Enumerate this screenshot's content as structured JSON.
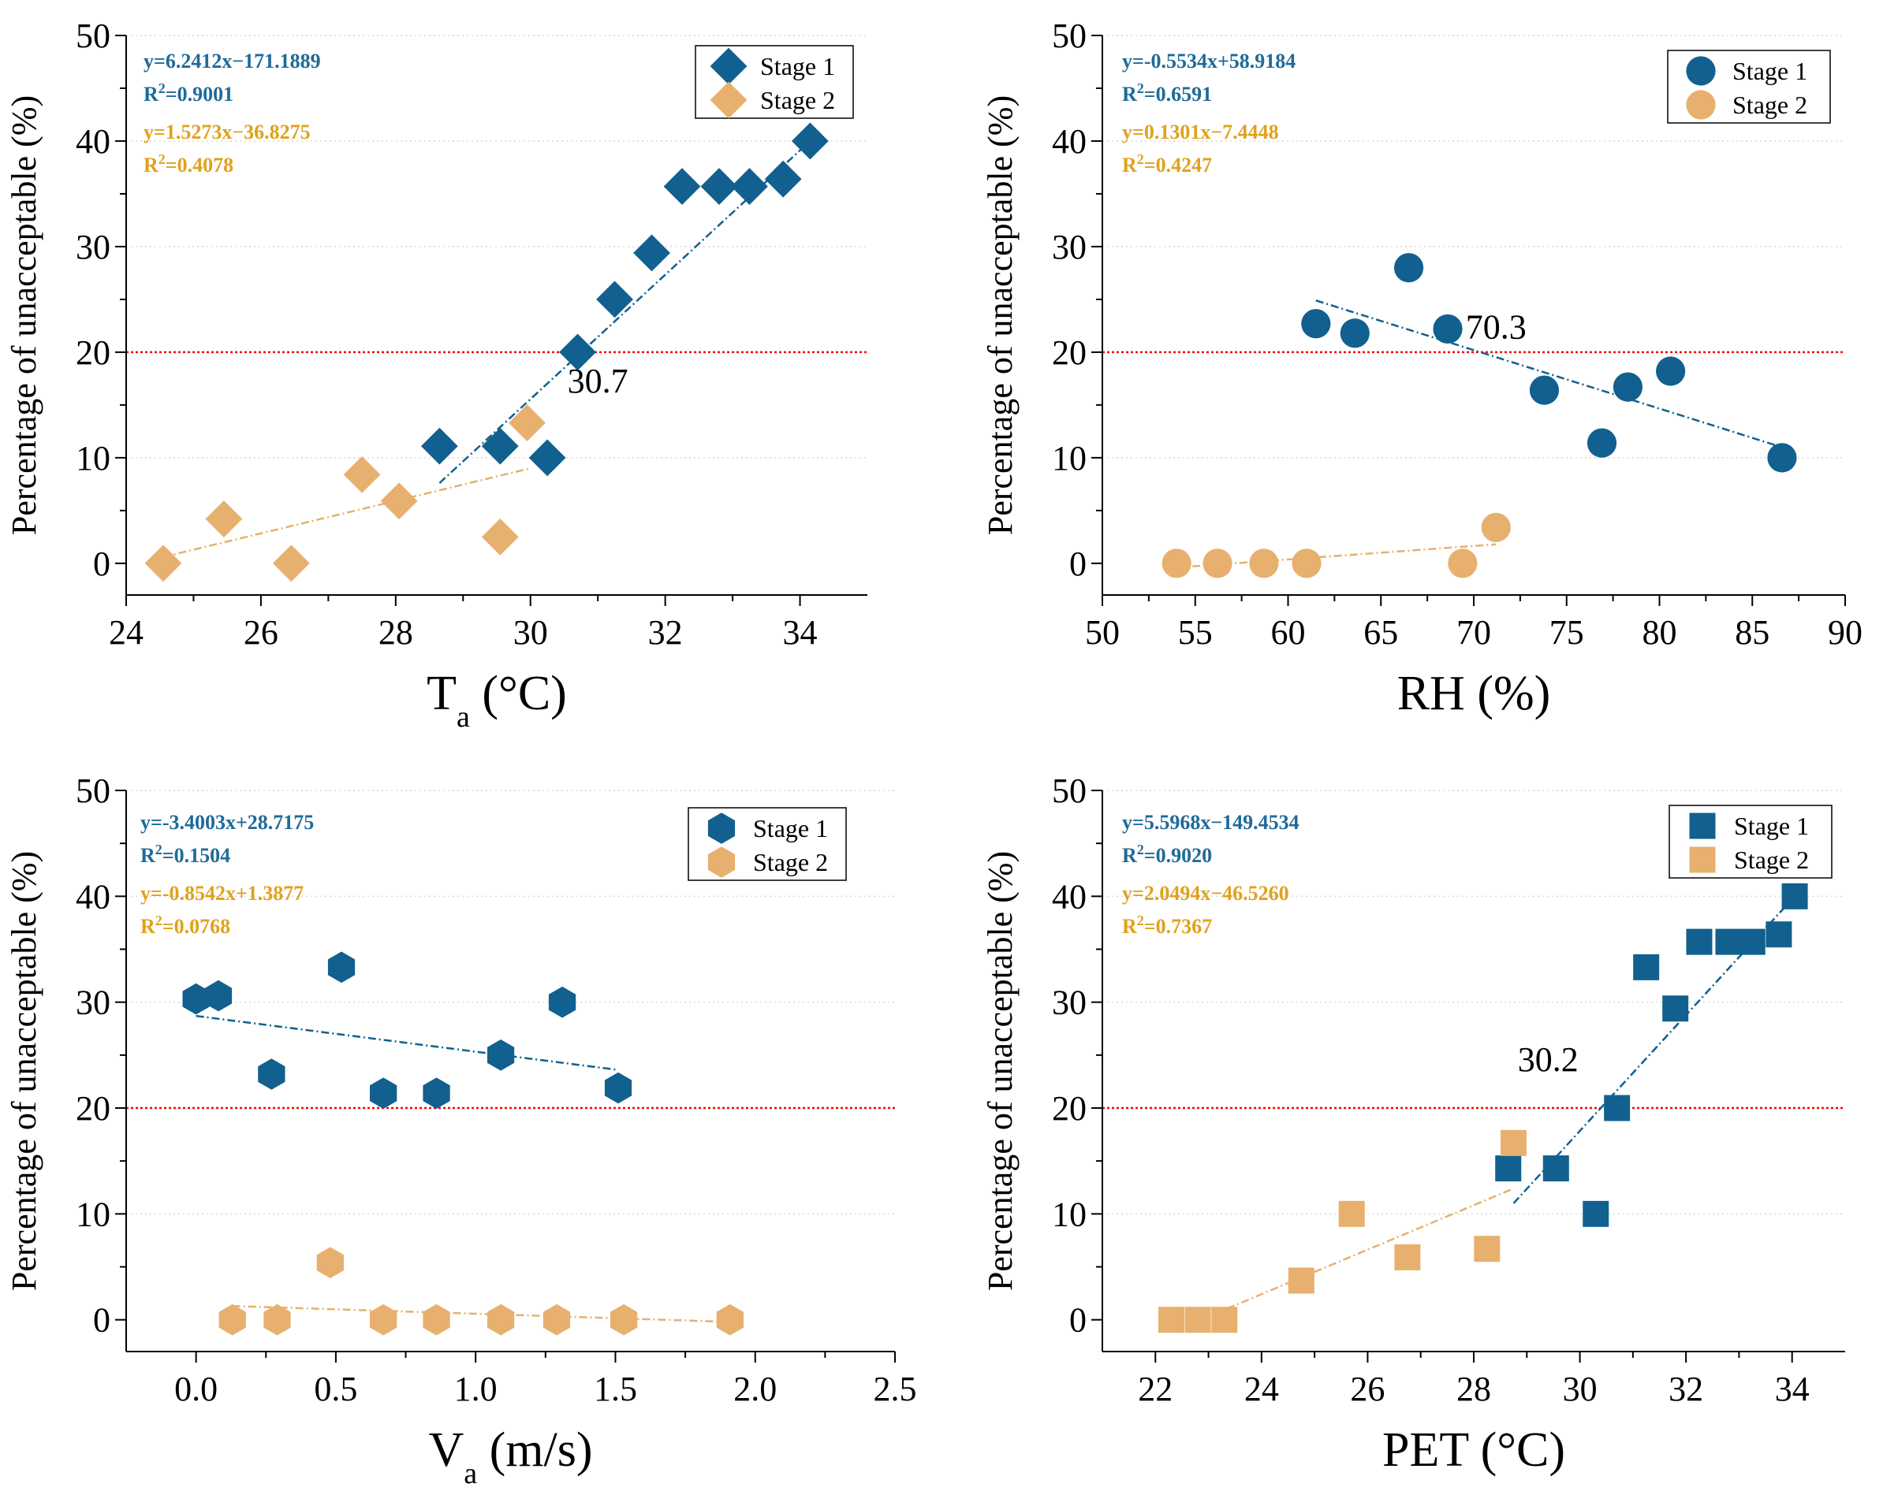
{
  "colors": {
    "stage1": "#11608f",
    "stage2": "#e8b06e",
    "eq1": "#1f6a99",
    "eq2": "#e0a21c",
    "threshold": "#ff0000",
    "grid": "#d9d9d9"
  },
  "chart_data": [
    {
      "type": "scatter",
      "marker": "diamond-icon",
      "xlabel": "T",
      "xlabel_sub": "a",
      "xlabel_unit": " (°C)",
      "ylabel": "Percentage of unacceptable (%)",
      "xlim": [
        24,
        35
      ],
      "ylim": [
        -3,
        50
      ],
      "xticks": [
        24,
        26,
        28,
        30,
        32,
        34
      ],
      "yticks": [
        0,
        10,
        20,
        30,
        40,
        50
      ],
      "threshold": 20,
      "annotation": {
        "text": "30.7",
        "x": 31.0,
        "y": 16.2
      },
      "equations": [
        {
          "text": "y=6.2412x−171.1889",
          "r2": "0.9001",
          "series": "Stage 1"
        },
        {
          "text": "y=1.5273x−36.8275",
          "r2": "0.4078",
          "series": "Stage 2"
        }
      ],
      "series": [
        {
          "name": "Stage 1",
          "x": [
            28.65,
            29.55,
            30.25,
            30.7,
            31.25,
            31.8,
            32.25,
            32.8,
            33.25,
            33.75,
            34.15
          ],
          "y": [
            11.1,
            11.1,
            10.0,
            20.0,
            25.0,
            29.4,
            35.7,
            35.7,
            35.7,
            36.4,
            40.0
          ],
          "fit": [
            [
              28.65,
              7.6
            ],
            [
              34.15,
              40.0
            ]
          ]
        },
        {
          "name": "Stage 2",
          "x": [
            24.55,
            25.45,
            26.45,
            27.5,
            28.05,
            29.55,
            29.95
          ],
          "y": [
            0.0,
            4.2,
            0.0,
            8.4,
            5.9,
            2.5,
            13.3
          ],
          "fit": [
            [
              24.55,
              0.6
            ],
            [
              30.0,
              9.0
            ]
          ]
        }
      ]
    },
    {
      "type": "scatter",
      "marker": "circle-icon",
      "xlabel": "RH (%)",
      "xlabel_sub": "",
      "xlabel_unit": "",
      "ylabel": "Percentage of unacceptable (%)",
      "xlim": [
        50,
        90
      ],
      "ylim": [
        -3,
        50
      ],
      "xticks": [
        50,
        55,
        60,
        65,
        70,
        75,
        80,
        85,
        90
      ],
      "yticks": [
        0,
        10,
        20,
        30,
        40,
        50
      ],
      "threshold": 20,
      "annotation": {
        "text": "70.3",
        "x": 71.2,
        "y": 21.3
      },
      "equations": [
        {
          "text": "y=-0.5534x+58.9184",
          "r2": "0.6591",
          "series": "Stage 1"
        },
        {
          "text": "y=0.1301x−7.4448",
          "r2": "0.4247",
          "series": "Stage 2"
        }
      ],
      "series": [
        {
          "name": "Stage 1",
          "x": [
            61.5,
            63.6,
            66.5,
            68.6,
            73.8,
            76.9,
            78.3,
            80.6,
            86.6
          ],
          "y": [
            22.7,
            21.8,
            28.0,
            22.2,
            16.4,
            11.4,
            16.7,
            18.2,
            10.0
          ],
          "fit": [
            [
              61.5,
              24.9
            ],
            [
              86.6,
              11.0
            ]
          ]
        },
        {
          "name": "Stage 2",
          "x": [
            54.0,
            56.2,
            58.7,
            61.0,
            69.4,
            71.2
          ],
          "y": [
            0.0,
            0.0,
            0.0,
            0.0,
            0.0,
            3.4
          ],
          "fit": [
            [
              54.0,
              -0.4
            ],
            [
              71.2,
              1.8
            ]
          ]
        }
      ]
    },
    {
      "type": "scatter",
      "marker": "hexagon-icon",
      "xlabel": "V",
      "xlabel_sub": "a",
      "xlabel_unit": " (m/s)",
      "ylabel": "Percentage of unacceptable (%)",
      "xlim": [
        -0.25,
        2.5
      ],
      "ylim": [
        -3,
        50
      ],
      "xticks": [
        0.0,
        0.5,
        1.0,
        1.5,
        2.0,
        2.5
      ],
      "xtick_labels": [
        "0.0",
        "0.5",
        "1.0",
        "1.5",
        "2.0",
        "2.5"
      ],
      "yticks": [
        0,
        10,
        20,
        30,
        40,
        50
      ],
      "threshold": 20,
      "annotation": null,
      "equations": [
        {
          "text": "y=-3.4003x+28.7175",
          "r2": "0.1504",
          "series": "Stage 1"
        },
        {
          "text": "y=-0.8542x+1.3877",
          "r2": "0.0768",
          "series": "Stage 2"
        }
      ],
      "series": [
        {
          "name": "Stage 1",
          "x": [
            0.0,
            0.08,
            0.27,
            0.52,
            0.67,
            0.86,
            1.09,
            1.31,
            1.51
          ],
          "y": [
            30.3,
            30.6,
            23.2,
            33.3,
            21.4,
            21.4,
            25.0,
            30.0,
            21.9
          ],
          "fit": [
            [
              0.0,
              28.7
            ],
            [
              1.51,
              23.6
            ]
          ]
        },
        {
          "name": "Stage 2",
          "x": [
            0.13,
            0.29,
            0.48,
            0.67,
            0.86,
            1.09,
            1.29,
            1.53,
            1.91
          ],
          "y": [
            0.0,
            0.0,
            5.4,
            0.0,
            0.0,
            0.0,
            0.0,
            0.0,
            0.0
          ],
          "fit": [
            [
              0.13,
              1.3
            ],
            [
              1.91,
              -0.2
            ]
          ]
        }
      ]
    },
    {
      "type": "scatter",
      "marker": "square-icon",
      "xlabel": "PET (°C)",
      "xlabel_sub": "",
      "xlabel_unit": "",
      "ylabel": "Percentage of unacceptable (%)",
      "xlim": [
        21,
        35
      ],
      "ylim": [
        -3,
        50
      ],
      "xticks": [
        22,
        24,
        26,
        28,
        30,
        32,
        34
      ],
      "yticks": [
        0,
        10,
        20,
        30,
        40,
        50
      ],
      "threshold": 20,
      "annotation": {
        "text": "30.2",
        "x": 29.4,
        "y": 23.5
      },
      "equations": [
        {
          "text": "y=5.5968x−149.4534",
          "r2": "0.9020",
          "series": "Stage 1"
        },
        {
          "text": "y=2.0494x−46.5260",
          "r2": "0.7367",
          "series": "Stage 2"
        }
      ],
      "series": [
        {
          "name": "Stage 1",
          "x": [
            28.65,
            29.55,
            30.3,
            30.7,
            31.25,
            31.8,
            32.25,
            32.8,
            33.25,
            33.75,
            34.05
          ],
          "y": [
            14.3,
            14.3,
            10.0,
            20.0,
            33.3,
            29.4,
            35.7,
            35.7,
            35.7,
            36.4,
            40.0
          ],
          "fit": [
            [
              28.75,
              11.0
            ],
            [
              34.05,
              40.0
            ]
          ]
        },
        {
          "name": "Stage 2",
          "x": [
            22.3,
            22.8,
            23.3,
            24.75,
            25.7,
            26.75,
            28.25,
            28.75
          ],
          "y": [
            0.0,
            0.0,
            0.0,
            3.7,
            10.0,
            5.9,
            6.7,
            16.7
          ],
          "fit": [
            [
              22.8,
              -0.1
            ],
            [
              28.75,
              12.4
            ]
          ]
        }
      ]
    }
  ]
}
